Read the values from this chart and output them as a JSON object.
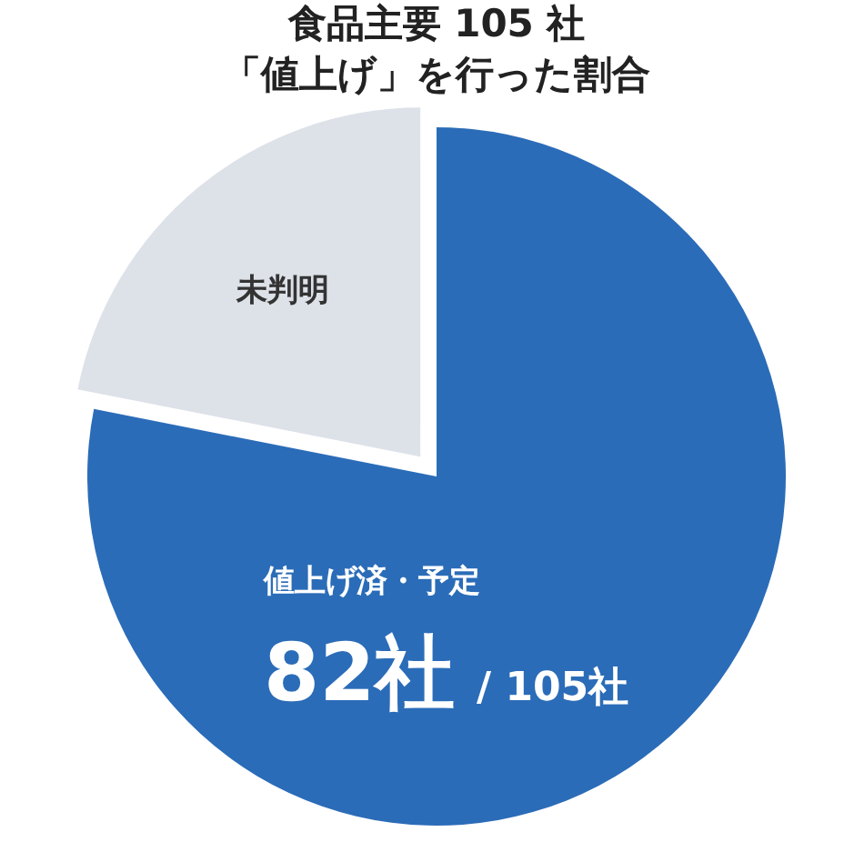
{
  "chart_data": {
    "type": "pie",
    "title": "食品主要 105 社",
    "subtitle": "「値上げ」を行った割合",
    "categories": [
      "値上げ済・予定",
      "未判明"
    ],
    "values": [
      82,
      23
    ],
    "colors": [
      "#2b6cb8",
      "#dde1e8"
    ],
    "value_labels": [
      "82社",
      null
    ],
    "annotations": [
      "/ 105社"
    ]
  }
}
